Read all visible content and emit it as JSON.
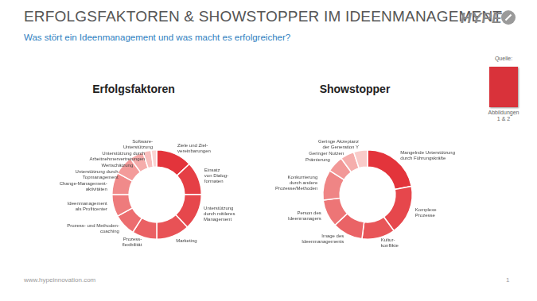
{
  "header": {
    "title": "ERFOLGSFAKTOREN & SHOWSTOPPER IM IDEENMANAGEMENT",
    "subtitle": "Was stört ein Ideenmanagement und was macht es erfolgreicher?",
    "logo": "HYPE"
  },
  "source": {
    "label": "Quelle:",
    "caption": "Abbildungen\n1 & 2"
  },
  "footer": {
    "url": "www.hypeinnovation.com",
    "page": "1"
  },
  "chart_data": [
    {
      "type": "doughnut",
      "title": "Erfolgsfaktoren",
      "categories": [
        "Ziele und Ziel-\nvereinbarungen",
        "Einsatz\nvon Dialog-\nformaten",
        "Unterstützung\ndurch mittleres\nManagement",
        "Marketing",
        "Prozess-\nflexibilität",
        "Prozess- und Methoden-\ncoaching",
        "Ideenmanagement\nals Profitcenter",
        "Change-Management-\naktivitäten",
        "Unterstützung durch\nTopmanagement",
        "Wertschätzung",
        "Unterstützung durch\nArbeitnehmervertretungen",
        "Software-\nUnterstützung"
      ],
      "values": [
        13,
        12,
        13,
        12,
        9,
        8,
        8,
        8,
        7,
        5,
        3,
        2
      ],
      "colors": [
        "#e3343b",
        "#e53f45",
        "#e6474c",
        "#e85256",
        "#ea6063",
        "#ec6d6f",
        "#ee7b7c",
        "#f08a8a",
        "#f39b9a",
        "#f5acab",
        "#f8bebd",
        "#fbd3d2"
      ]
    },
    {
      "type": "doughnut",
      "title": "Showstopper",
      "categories": [
        "Mangelnde Unterstützung\ndurch Führungskräfte",
        "Komplexe\nProzesse",
        "Kultur-\nkonflikte",
        "Image des\nIdeenmanagements",
        "Person des\nIdeenmanagers",
        "Konkurrierung\ndurch andere\nProzesse/Methoden",
        "Prämierung",
        "Geringer Nutzen",
        "Geringe Akzeptanz\nder Generation Y"
      ],
      "values": [
        22,
        18,
        12,
        11,
        10,
        11,
        6,
        5,
        5
      ],
      "colors": [
        "#e3343b",
        "#e6474c",
        "#e85558",
        "#ea6366",
        "#ed7576",
        "#ef8585",
        "#f29897",
        "#f5aeac",
        "#f9cbc9"
      ]
    }
  ]
}
